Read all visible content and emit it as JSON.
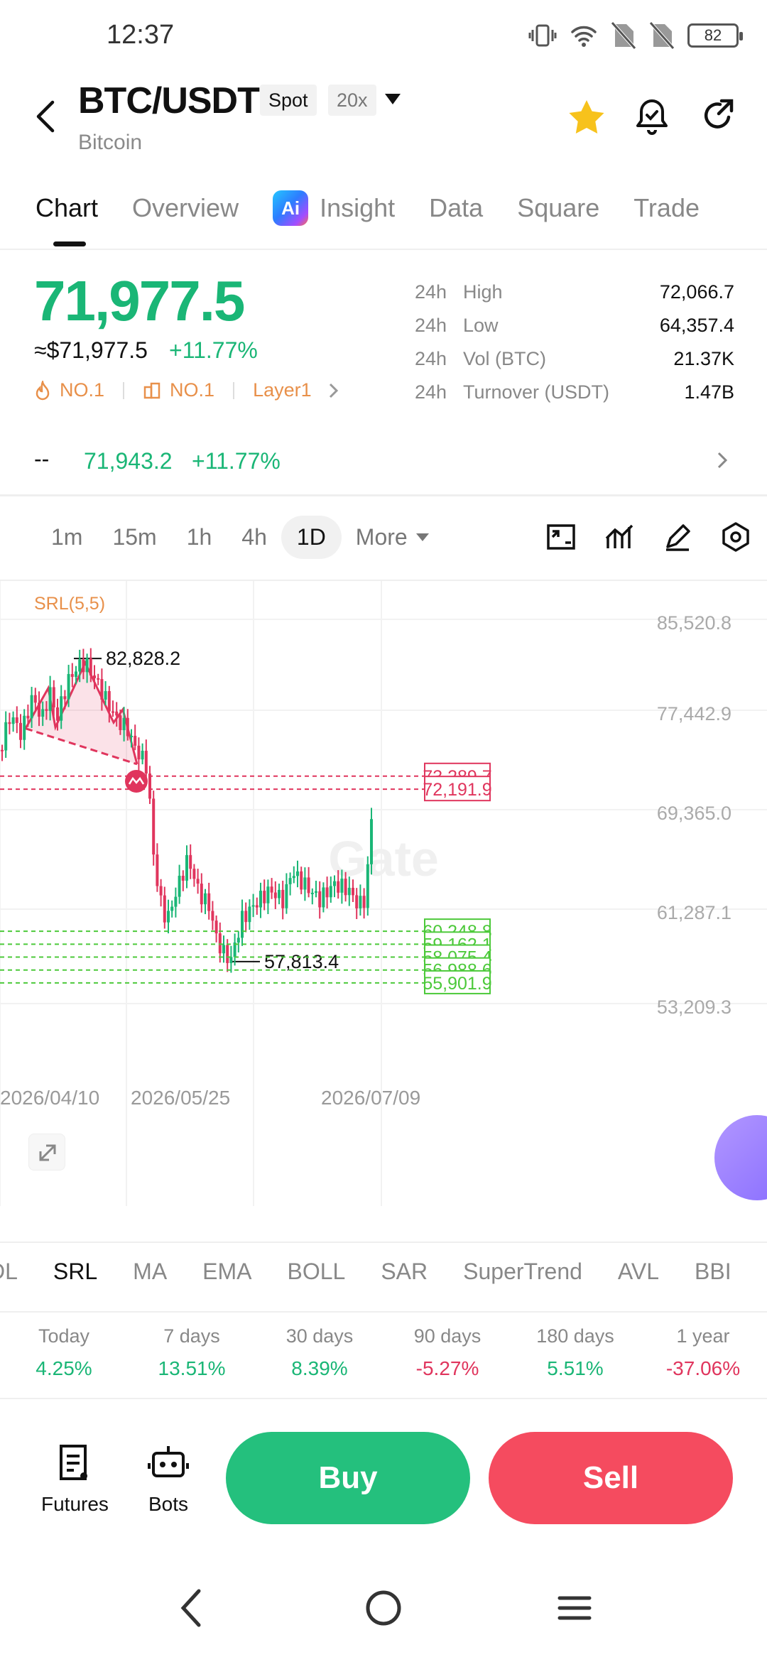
{
  "status_bar": {
    "time": "12:37",
    "battery": "82"
  },
  "header": {
    "pair": "BTC/USDT",
    "tag_spot": "Spot",
    "tag_leverage": "20x",
    "subtitle": "Bitcoin"
  },
  "tabs": [
    {
      "label": "Chart",
      "active": true
    },
    {
      "label": "Overview"
    },
    {
      "label": "Insight",
      "badge": "Ai"
    },
    {
      "label": "Data"
    },
    {
      "label": "Square"
    },
    {
      "label": "Trade"
    }
  ],
  "price": {
    "last": "71,977.5",
    "approx": "≈$71,977.5",
    "change": "+11.77%",
    "rank1": "NO.1",
    "rank2": "NO.1",
    "category": "Layer1"
  },
  "stats": [
    {
      "period": "24h",
      "name": "High",
      "value": "72,066.7"
    },
    {
      "period": "24h",
      "name": "Low",
      "value": "64,357.4"
    },
    {
      "period": "24h",
      "name": "Vol (BTC)",
      "value": "21.37K"
    },
    {
      "period": "24h",
      "name": "Turnover (USDT)",
      "value": "1.47B"
    }
  ],
  "mark_row": {
    "dash": "--",
    "price": "71,943.2",
    "change": "+11.77%"
  },
  "timeframes": {
    "items": [
      "1m",
      "15m",
      "1h",
      "4h",
      "1D"
    ],
    "active": "1D",
    "more": "More"
  },
  "chart_data": {
    "type": "candlestick",
    "indicator_label": "SRL(5,5)",
    "y_ticks": [
      "85,520.8",
      "77,442.9",
      "69,365.0",
      "61,287.1",
      "53,209.3"
    ],
    "x_ticks": [
      "2026/04/10",
      "2026/05/25",
      "2026/07/09"
    ],
    "ylim": [
      53209.3,
      85520.8
    ],
    "high_annotation": "82,828.2",
    "low_annotation": "57,813.4",
    "price_labels_red": [
      "73,289.7",
      "72,191.9"
    ],
    "price_labels_green": [
      "60,248.8",
      "59,162.1",
      "58,075.4",
      "56,988.6",
      "55,901.9"
    ],
    "watermark": "Gate",
    "colors": {
      "up": "#1ab676",
      "down": "#e0355d",
      "pattern": "#e0355d",
      "support": "#4cc93a"
    }
  },
  "indicators": {
    "items": [
      "DL",
      "SRL",
      "MA",
      "EMA",
      "BOLL",
      "SAR",
      "SuperTrend",
      "AVL",
      "BBI"
    ],
    "active": "SRL"
  },
  "performance": [
    {
      "label": "Today",
      "value": "4.25%",
      "dir": "up"
    },
    {
      "label": "7 days",
      "value": "13.51%",
      "dir": "up"
    },
    {
      "label": "30 days",
      "value": "8.39%",
      "dir": "up"
    },
    {
      "label": "90 days",
      "value": "-5.27%",
      "dir": "down"
    },
    {
      "label": "180 days",
      "value": "5.51%",
      "dir": "up"
    },
    {
      "label": "1 year",
      "value": "-37.06%",
      "dir": "down"
    }
  ],
  "actions": {
    "futures": "Futures",
    "bots": "Bots",
    "buy": "Buy",
    "sell": "Sell"
  },
  "icons": [
    "back-icon",
    "star-icon",
    "alarm-icon",
    "share-icon",
    "fullscreen-icon",
    "indicator-icon",
    "draw-icon",
    "settings-icon"
  ]
}
